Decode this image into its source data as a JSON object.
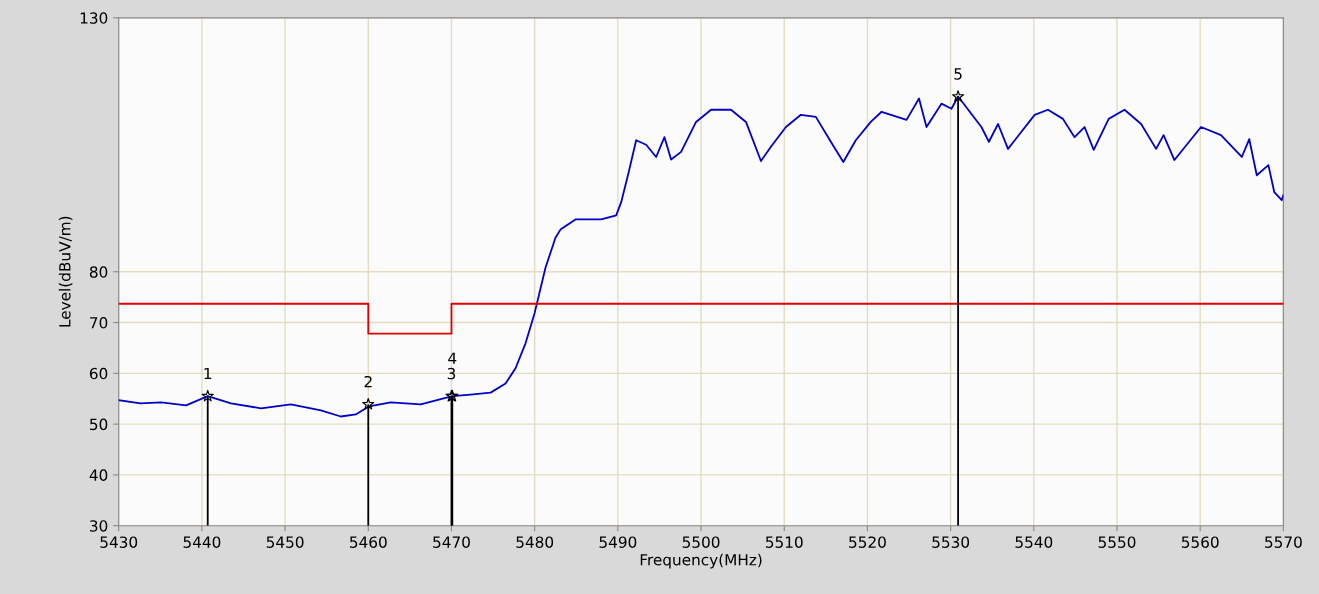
{
  "chart_data": {
    "type": "line",
    "xlabel": "Frequency(MHz)",
    "ylabel": "Level(dBuV/m)",
    "xlim": [
      5430,
      5570
    ],
    "ylim": [
      30,
      130
    ],
    "xticks": [
      5430,
      5440,
      5450,
      5460,
      5470,
      5480,
      5490,
      5500,
      5510,
      5520,
      5530,
      5540,
      5550,
      5560,
      5570
    ],
    "yticks": [
      30,
      40,
      50,
      60,
      70,
      80,
      130
    ],
    "grid": true,
    "line_style": "solid",
    "series": [
      {
        "color": "#0000c8",
        "marker": "none",
        "x": [
          5430.0,
          5432.6,
          5435.1,
          5438.1,
          5440.7,
          5443.5,
          5447.1,
          5450.7,
          5454.3,
          5456.7,
          5458.5,
          5460.1,
          5462.7,
          5466.3,
          5470.1,
          5472.3,
          5474.7,
          5476.5,
          5477.7,
          5478.9,
          5480.0,
          5481.3,
          5482.5,
          5483.1,
          5484.9,
          5488.0,
          5489.8,
          5490.4,
          5491.3,
          5492.2,
          5493.4,
          5494.6,
          5495.6,
          5496.4,
          5497.6,
          5499.4,
          5501.2,
          5503.6,
          5505.4,
          5507.2,
          5508.4,
          5510.2,
          5512.0,
          5513.8,
          5515.6,
          5517.1,
          5518.6,
          5520.4,
          5521.7,
          5524.7,
          5526.2,
          5527.1,
          5528.9,
          5530.1,
          5530.9,
          5533.7,
          5534.6,
          5535.7,
          5536.9,
          5540.1,
          5541.7,
          5543.5,
          5544.9,
          5546.1,
          5547.2,
          5549.0,
          5550.9,
          5552.9,
          5554.7,
          5555.6,
          5556.9,
          5560.1,
          5562.5,
          5565.0,
          5565.9,
          5566.8,
          5568.2,
          5568.9,
          5569.8,
          5570.0
        ],
        "values": [
          54.7,
          54.1,
          54.3,
          53.7,
          55.5,
          54.1,
          53.1,
          53.9,
          52.7,
          51.5,
          51.9,
          53.5,
          54.3,
          53.9,
          55.5,
          55.8,
          56.2,
          58.0,
          61.0,
          65.9,
          71.9,
          80.8,
          86.7,
          88.3,
          90.3,
          90.3,
          91.1,
          93.7,
          99.6,
          105.9,
          105.0,
          102.6,
          106.5,
          102.1,
          103.6,
          109.5,
          111.9,
          111.9,
          109.5,
          101.8,
          104.6,
          108.5,
          110.9,
          110.5,
          105.6,
          101.6,
          105.9,
          109.5,
          111.5,
          109.9,
          114.1,
          108.5,
          113.1,
          112.1,
          114.5,
          108.5,
          105.6,
          109.1,
          104.2,
          110.9,
          111.9,
          110.1,
          106.5,
          108.5,
          104.0,
          110.1,
          111.9,
          109.1,
          104.2,
          106.9,
          102.0,
          108.5,
          106.9,
          102.6,
          106.1,
          99.0,
          101.0,
          95.7,
          94.1,
          95.1
        ]
      },
      {
        "color": "#e00000",
        "marker": "none",
        "x": [
          5430,
          5460,
          5460,
          5470,
          5470,
          5570
        ],
        "values": [
          73.7,
          73.7,
          67.8,
          67.8,
          73.7,
          73.7
        ]
      },
      {
        "type": "lollipop",
        "color": "#000000",
        "marker": "star",
        "x": [
          5440.7,
          5460.0,
          5470.0,
          5470.1,
          5530.9
        ],
        "values": [
          55.5,
          53.9,
          55.5,
          55.5,
          114.5
        ]
      }
    ],
    "annotations": [
      {
        "text": "1",
        "x": 5440.7,
        "y": 55.5
      },
      {
        "text": "2",
        "x": 5460.0,
        "y": 53.9
      },
      {
        "text": "3",
        "x": 5470.0,
        "y": 55.5
      },
      {
        "text": "4",
        "x": 5470.1,
        "y": 55.5
      },
      {
        "text": "5",
        "x": 5530.9,
        "y": 114.5
      }
    ]
  }
}
